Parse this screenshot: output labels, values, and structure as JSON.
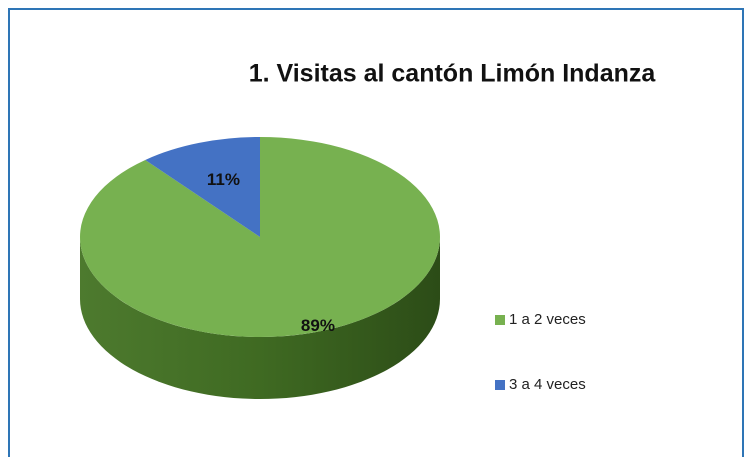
{
  "chart_data": {
    "type": "pie3d",
    "title": "1. Visitas al cantón Limón Indanza",
    "categories": [
      "1 a 2 veces",
      "3 a 4 veces"
    ],
    "values": [
      89,
      11
    ],
    "value_labels": [
      "89%",
      "11%"
    ],
    "colors": [
      "#77b150",
      "#4472c4"
    ],
    "legend": "right"
  }
}
